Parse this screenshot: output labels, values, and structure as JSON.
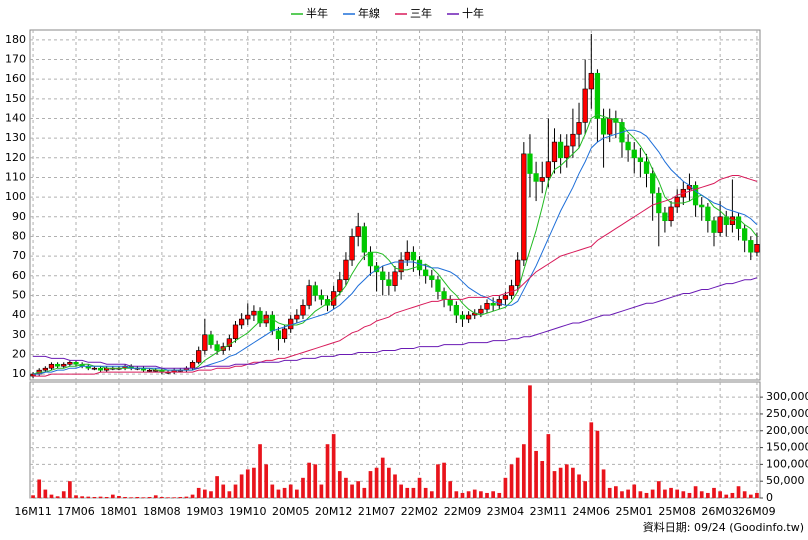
{
  "chart_data": {
    "type": "candlestick",
    "legend": "top",
    "grid": true,
    "source": "資料日期: 09/24  (Goodinfo.tw)",
    "categories": [
      "16M11",
      null,
      null,
      null,
      null,
      null,
      null,
      "17M06",
      null,
      null,
      null,
      null,
      null,
      null,
      "18M01",
      null,
      null,
      null,
      null,
      null,
      null,
      "18M08",
      null,
      null,
      null,
      null,
      null,
      null,
      "19M03",
      null,
      null,
      null,
      null,
      null,
      null,
      "19M10",
      null,
      null,
      null,
      null,
      null,
      null,
      "20M05",
      null,
      null,
      null,
      null,
      null,
      null,
      "20M12",
      null,
      null,
      null,
      null,
      null,
      null,
      "21M07",
      null,
      null,
      null,
      null,
      null,
      null,
      "22M02",
      null,
      null,
      null,
      null,
      null,
      null,
      "22M09",
      null,
      null,
      null,
      null,
      null,
      null,
      "23M04",
      null,
      null,
      null,
      null,
      null,
      null,
      "23M11",
      null,
      null,
      null,
      null,
      null,
      null,
      "24M06",
      null,
      null,
      null,
      null,
      null,
      null,
      "25M01",
      null,
      null,
      null,
      null,
      null,
      null,
      "25M08",
      null,
      null,
      null,
      null,
      null,
      null,
      "26M03",
      null,
      null,
      null,
      null,
      null,
      "26M09"
    ],
    "open": [
      9,
      10,
      12,
      13,
      15,
      14,
      15,
      16,
      15,
      14,
      13,
      13,
      12,
      13,
      13,
      13,
      14,
      13,
      13,
      12,
      12,
      12,
      11,
      11,
      12,
      12,
      13,
      16,
      22,
      30,
      25,
      22,
      24,
      28,
      35,
      38,
      40,
      42,
      36,
      40,
      32,
      28,
      33,
      38,
      40,
      45,
      55,
      50,
      48,
      45,
      52,
      58,
      68,
      80,
      85,
      72,
      65,
      62,
      58,
      55,
      62,
      68,
      72,
      68,
      63,
      60,
      58,
      52,
      48,
      45,
      40,
      38,
      40,
      41,
      43,
      46,
      45,
      48,
      50,
      55,
      68,
      122,
      112,
      108,
      110,
      118,
      128,
      120,
      126,
      132,
      138,
      155,
      163,
      140,
      132,
      140,
      138,
      128,
      124,
      120,
      118,
      112,
      102,
      92,
      88,
      95,
      100,
      104,
      106,
      96,
      95,
      88,
      82,
      90,
      86,
      90,
      84,
      78,
      72
    ],
    "high": [
      11,
      13,
      14,
      16,
      16,
      16,
      17,
      17,
      16,
      15,
      14,
      14,
      14,
      14,
      14,
      15,
      15,
      14,
      14,
      13,
      13,
      13,
      12,
      13,
      13,
      14,
      17,
      24,
      38,
      32,
      27,
      26,
      30,
      37,
      41,
      46,
      45,
      44,
      42,
      42,
      34,
      35,
      40,
      43,
      48,
      58,
      57,
      53,
      50,
      55,
      62,
      72,
      84,
      92,
      87,
      75,
      67,
      65,
      62,
      65,
      72,
      78,
      75,
      70,
      66,
      63,
      60,
      54,
      50,
      47,
      42,
      42,
      43,
      45,
      48,
      49,
      50,
      52,
      58,
      72,
      128,
      132,
      118,
      118,
      140,
      135,
      132,
      132,
      145,
      148,
      170,
      183,
      165,
      145,
      145,
      144,
      140,
      132,
      128,
      125,
      122,
      115,
      105,
      95,
      98,
      104,
      108,
      112,
      108,
      100,
      97,
      90,
      98,
      93,
      109,
      92,
      86,
      80,
      82
    ],
    "low": [
      8,
      9,
      11,
      12,
      13,
      13,
      14,
      14,
      13,
      12,
      12,
      11,
      11,
      12,
      12,
      12,
      12,
      12,
      11,
      11,
      11,
      10,
      10,
      10,
      11,
      11,
      12,
      15,
      20,
      23,
      20,
      20,
      22,
      26,
      33,
      35,
      37,
      34,
      34,
      30,
      22,
      26,
      31,
      36,
      38,
      43,
      47,
      45,
      42,
      43,
      50,
      55,
      65,
      75,
      68,
      60,
      52,
      50,
      50,
      52,
      58,
      65,
      62,
      60,
      56,
      54,
      48,
      44,
      42,
      36,
      34,
      36,
      38,
      39,
      41,
      42,
      43,
      45,
      48,
      52,
      65,
      100,
      98,
      102,
      105,
      112,
      112,
      115,
      120,
      125,
      132,
      145,
      128,
      115,
      128,
      130,
      120,
      118,
      112,
      110,
      105,
      88,
      75,
      82,
      85,
      92,
      96,
      98,
      90,
      88,
      82,
      75,
      80,
      80,
      82,
      78,
      72,
      68,
      70
    ],
    "close": [
      10,
      12,
      13,
      15,
      14,
      15,
      16,
      15,
      14,
      13,
      13,
      12,
      13,
      13,
      13,
      14,
      13,
      13,
      12,
      12,
      12,
      11,
      11,
      12,
      12,
      13,
      16,
      22,
      30,
      25,
      22,
      24,
      28,
      35,
      38,
      40,
      42,
      36,
      40,
      32,
      28,
      33,
      38,
      40,
      45,
      55,
      50,
      48,
      45,
      52,
      58,
      68,
      80,
      85,
      72,
      65,
      62,
      58,
      55,
      62,
      68,
      72,
      68,
      63,
      60,
      58,
      52,
      48,
      45,
      40,
      38,
      40,
      41,
      43,
      46,
      45,
      48,
      50,
      55,
      68,
      122,
      112,
      108,
      110,
      118,
      128,
      120,
      126,
      132,
      138,
      155,
      163,
      140,
      132,
      140,
      138,
      128,
      124,
      120,
      118,
      112,
      102,
      92,
      88,
      95,
      100,
      104,
      106,
      96,
      95,
      88,
      82,
      90,
      86,
      90,
      84,
      78,
      72,
      76
    ],
    "up_color": "#ff0000",
    "down_color": "#00c800",
    "ylim": [
      7,
      185
    ],
    "yticks": [
      10,
      20,
      30,
      40,
      50,
      60,
      70,
      80,
      90,
      100,
      110,
      120,
      130,
      140,
      150,
      160,
      170,
      180
    ],
    "series": [
      {
        "name": "半年",
        "color": "#22bb22",
        "values": [
          10,
          11,
          11,
          12,
          13,
          13,
          14,
          14,
          15,
          15,
          14,
          14,
          13,
          13,
          13,
          13,
          13,
          13,
          13,
          13,
          12,
          12,
          12,
          12,
          12,
          12,
          12,
          14,
          17,
          19,
          21,
          23,
          25,
          27,
          29,
          31,
          34,
          37,
          38,
          38,
          36,
          35,
          35,
          35,
          36,
          39,
          42,
          44,
          46,
          48,
          51,
          55,
          61,
          66,
          70,
          72,
          72,
          71,
          68,
          64,
          63,
          63,
          64,
          65,
          66,
          64,
          61,
          57,
          53,
          50,
          46,
          43,
          41,
          40,
          41,
          42,
          43,
          44,
          47,
          52,
          63,
          73,
          83,
          95,
          108,
          114,
          116,
          119,
          122,
          125,
          132,
          140,
          142,
          141,
          140,
          139,
          137,
          133,
          130,
          126,
          121,
          114,
          108,
          100,
          97,
          97,
          97,
          98,
          100,
          101,
          99,
          95,
          93,
          90,
          88,
          89,
          86,
          84,
          80
        ]
      },
      {
        "name": "年線",
        "color": "#1e6fd9",
        "values": [
          10,
          10,
          11,
          11,
          12,
          12,
          13,
          13,
          14,
          14,
          14,
          14,
          14,
          14,
          14,
          14,
          13,
          13,
          13,
          13,
          13,
          13,
          12,
          12,
          12,
          12,
          12,
          13,
          14,
          15,
          16,
          17,
          19,
          20,
          22,
          24,
          26,
          28,
          30,
          32,
          33,
          34,
          35,
          36,
          37,
          38,
          39,
          40,
          41,
          43,
          45,
          48,
          51,
          55,
          58,
          61,
          63,
          65,
          66,
          67,
          67,
          67,
          67,
          66,
          65,
          64,
          64,
          63,
          62,
          60,
          57,
          54,
          52,
          50,
          49,
          47,
          46,
          45,
          45,
          47,
          53,
          59,
          65,
          72,
          79,
          86,
          93,
          99,
          105,
          112,
          118,
          125,
          128,
          130,
          131,
          132,
          133,
          134,
          134,
          133,
          131,
          127,
          123,
          118,
          114,
          111,
          108,
          106,
          103,
          101,
          99,
          97,
          96,
          94,
          93,
          92,
          91,
          89,
          86
        ]
      },
      {
        "name": "三年",
        "color": "#d81b5a",
        "values": [
          9,
          9,
          9,
          10,
          10,
          10,
          10,
          10,
          10,
          10,
          10,
          11,
          11,
          11,
          11,
          11,
          11,
          11,
          11,
          11,
          11,
          11,
          11,
          11,
          11,
          11,
          11,
          12,
          12,
          12,
          13,
          13,
          13,
          14,
          14,
          15,
          16,
          16,
          17,
          17,
          18,
          18,
          19,
          20,
          21,
          22,
          23,
          24,
          25,
          26,
          27,
          29,
          31,
          32,
          34,
          35,
          37,
          38,
          39,
          41,
          42,
          43,
          44,
          45,
          46,
          47,
          47,
          48,
          48,
          48,
          48,
          49,
          49,
          49,
          49,
          50,
          50,
          51,
          52,
          53,
          56,
          59,
          62,
          64,
          66,
          68,
          70,
          71,
          72,
          73,
          74,
          75,
          78,
          80,
          82,
          84,
          86,
          88,
          90,
          92,
          94,
          96,
          97,
          98,
          99,
          101,
          102,
          103,
          104,
          105,
          106,
          107,
          109,
          110,
          111,
          111,
          110,
          109,
          108
        ]
      },
      {
        "name": "十年",
        "color": "#6a1ab4",
        "values": [
          19,
          19,
          19,
          18,
          18,
          18,
          17,
          17,
          17,
          16,
          16,
          16,
          15,
          15,
          15,
          15,
          14,
          14,
          14,
          14,
          14,
          13,
          13,
          13,
          13,
          13,
          13,
          13,
          14,
          14,
          14,
          14,
          14,
          15,
          15,
          15,
          15,
          16,
          16,
          16,
          16,
          17,
          17,
          17,
          18,
          18,
          18,
          19,
          19,
          19,
          20,
          20,
          20,
          21,
          21,
          21,
          21,
          22,
          22,
          22,
          23,
          23,
          23,
          24,
          24,
          24,
          24,
          25,
          25,
          25,
          25,
          26,
          26,
          26,
          26,
          27,
          27,
          27,
          28,
          28,
          29,
          29,
          30,
          31,
          32,
          33,
          34,
          35,
          36,
          36,
          37,
          38,
          39,
          40,
          40,
          41,
          42,
          43,
          44,
          45,
          46,
          46,
          47,
          48,
          49,
          50,
          51,
          51,
          52,
          53,
          53,
          54,
          55,
          56,
          56,
          57,
          58,
          58,
          59
        ]
      }
    ],
    "volume": {
      "color": "#e8141c",
      "ylim": [
        0,
        345000
      ],
      "yticks": [
        0,
        {
          "value": 50000,
          "label": "50,000"
        },
        {
          "value": 100000,
          "label": "100,000"
        },
        {
          "value": 150000,
          "label": "150,000"
        },
        {
          "value": 200000,
          "label": "200,000"
        },
        {
          "value": 250000,
          "label": "250,000"
        },
        {
          "value": 300000,
          "label": "300,000"
        }
      ],
      "values": [
        8000,
        55000,
        25000,
        10000,
        5000,
        20000,
        50000,
        8000,
        5000,
        4000,
        3000,
        4000,
        3000,
        10000,
        6000,
        3000,
        2000,
        3000,
        2000,
        3000,
        8000,
        3000,
        2000,
        2000,
        3000,
        4000,
        10000,
        30000,
        25000,
        20000,
        65000,
        40000,
        20000,
        40000,
        70000,
        85000,
        90000,
        160000,
        100000,
        40000,
        25000,
        30000,
        40000,
        25000,
        60000,
        105000,
        100000,
        40000,
        160000,
        190000,
        80000,
        60000,
        40000,
        50000,
        30000,
        80000,
        90000,
        120000,
        90000,
        70000,
        40000,
        30000,
        30000,
        60000,
        30000,
        20000,
        100000,
        105000,
        50000,
        20000,
        15000,
        20000,
        25000,
        20000,
        15000,
        20000,
        15000,
        60000,
        100000,
        120000,
        160000,
        335000,
        140000,
        110000,
        190000,
        80000,
        90000,
        100000,
        90000,
        70000,
        50000,
        225000,
        200000,
        85000,
        30000,
        35000,
        20000,
        25000,
        40000,
        20000,
        15000,
        25000,
        50000,
        25000,
        30000,
        25000,
        20000,
        15000,
        35000,
        20000,
        15000,
        30000,
        20000,
        10000,
        15000,
        35000,
        20000,
        10000,
        15000
      ]
    }
  }
}
